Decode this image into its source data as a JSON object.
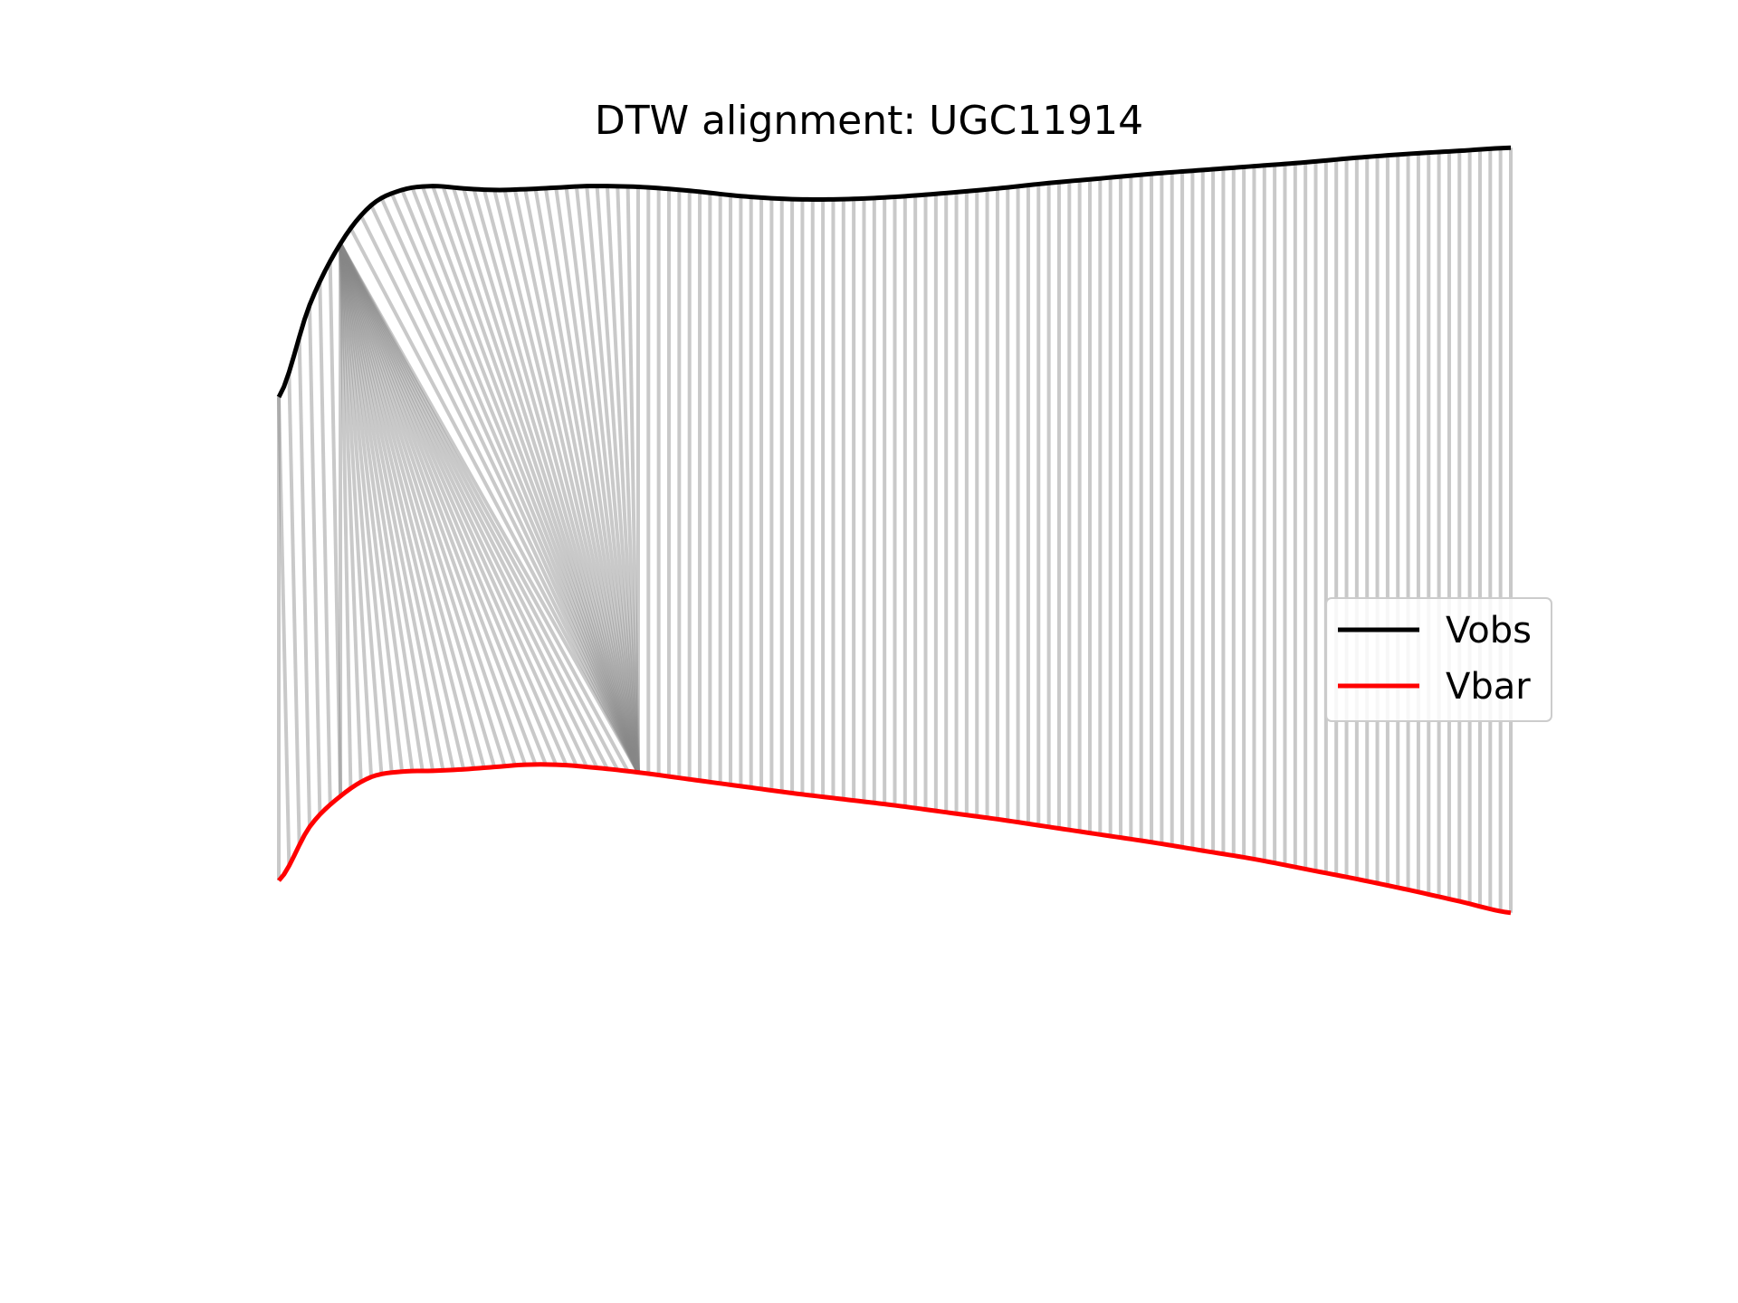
{
  "chart_data": {
    "type": "line",
    "title": "DTW alignment: UGC11914",
    "axes_visible": false,
    "grid": false,
    "legend_location": "center-right",
    "ylim": [
      -0.42,
      0.87
    ],
    "series": [
      {
        "name": "Vobs",
        "color": "#000000",
        "x": [
          0,
          3,
          6,
          9,
          12,
          15,
          18,
          21,
          24,
          27,
          30,
          35,
          40,
          45,
          50,
          55,
          60,
          65,
          70,
          75,
          80,
          85,
          90,
          95,
          100,
          105,
          110,
          115,
          120
        ],
        "values": [
          0.56,
          0.68,
          0.76,
          0.81,
          0.83,
          0.835,
          0.832,
          0.83,
          0.831,
          0.833,
          0.835,
          0.834,
          0.829,
          0.822,
          0.818,
          0.818,
          0.821,
          0.826,
          0.832,
          0.839,
          0.845,
          0.851,
          0.856,
          0.861,
          0.866,
          0.872,
          0.877,
          0.881,
          0.885
        ]
      },
      {
        "name": "Vbar",
        "color": "#ff0000",
        "x": [
          0,
          3,
          6,
          9,
          12,
          15,
          18,
          21,
          24,
          27,
          30,
          35,
          40,
          45,
          50,
          55,
          60,
          65,
          70,
          75,
          80,
          85,
          90,
          95,
          100,
          105,
          110,
          115,
          120
        ],
        "values": [
          -0.07,
          0.0,
          0.04,
          0.065,
          0.072,
          0.073,
          0.075,
          0.078,
          0.081,
          0.081,
          0.078,
          0.071,
          0.062,
          0.053,
          0.044,
          0.036,
          0.028,
          0.019,
          0.01,
          0.0,
          -0.01,
          -0.02,
          -0.031,
          -0.042,
          -0.055,
          -0.068,
          -0.082,
          -0.097,
          -0.112
        ]
      }
    ],
    "alignment": {
      "connector_color": "#888888",
      "pairs_vobs_to_vbar": [
        [
          0,
          0
        ],
        [
          0,
          1
        ],
        [
          1,
          2
        ],
        [
          2,
          3
        ],
        [
          3,
          4
        ],
        [
          4,
          5
        ],
        [
          5,
          6
        ],
        [
          6,
          6
        ],
        [
          6,
          7
        ],
        [
          6,
          8
        ],
        [
          6,
          9
        ],
        [
          6,
          10
        ],
        [
          6,
          11
        ],
        [
          6,
          12
        ],
        [
          6,
          13
        ],
        [
          6,
          14
        ],
        [
          6,
          15
        ],
        [
          6,
          16
        ],
        [
          6,
          17
        ],
        [
          6,
          18
        ],
        [
          6,
          19
        ],
        [
          6,
          20
        ],
        [
          6,
          21
        ],
        [
          6,
          22
        ],
        [
          6,
          23
        ],
        [
          6,
          24
        ],
        [
          6,
          25
        ],
        [
          6,
          26
        ],
        [
          6,
          27
        ],
        [
          6,
          28
        ],
        [
          6,
          29
        ],
        [
          6,
          30
        ],
        [
          6,
          31
        ],
        [
          6,
          32
        ],
        [
          6,
          33
        ],
        [
          6,
          34
        ],
        [
          6,
          35
        ],
        [
          7,
          35
        ],
        [
          8,
          35
        ],
        [
          9,
          35
        ],
        [
          10,
          35
        ],
        [
          11,
          35
        ],
        [
          12,
          35
        ],
        [
          13,
          35
        ],
        [
          14,
          35
        ],
        [
          15,
          35
        ],
        [
          16,
          35
        ],
        [
          17,
          35
        ],
        [
          18,
          35
        ],
        [
          19,
          35
        ],
        [
          20,
          35
        ],
        [
          21,
          35
        ],
        [
          22,
          35
        ],
        [
          23,
          35
        ],
        [
          24,
          35
        ],
        [
          25,
          35
        ],
        [
          26,
          35
        ],
        [
          27,
          35
        ],
        [
          28,
          35
        ],
        [
          29,
          35
        ],
        [
          30,
          35
        ],
        [
          31,
          35
        ],
        [
          32,
          35
        ],
        [
          33,
          35
        ],
        [
          34,
          35
        ],
        [
          35,
          35
        ],
        [
          36,
          36
        ],
        [
          37,
          37
        ],
        [
          38,
          38
        ],
        [
          39,
          39
        ],
        [
          40,
          40
        ],
        [
          41,
          41
        ],
        [
          42,
          42
        ],
        [
          43,
          43
        ],
        [
          44,
          44
        ],
        [
          45,
          45
        ],
        [
          46,
          46
        ],
        [
          47,
          47
        ],
        [
          48,
          48
        ],
        [
          49,
          49
        ],
        [
          50,
          50
        ],
        [
          51,
          51
        ],
        [
          52,
          52
        ],
        [
          53,
          53
        ],
        [
          54,
          54
        ],
        [
          55,
          55
        ],
        [
          56,
          56
        ],
        [
          57,
          57
        ],
        [
          58,
          58
        ],
        [
          59,
          59
        ],
        [
          60,
          60
        ],
        [
          61,
          61
        ],
        [
          62,
          62
        ],
        [
          63,
          63
        ],
        [
          64,
          64
        ],
        [
          65,
          65
        ],
        [
          66,
          66
        ],
        [
          67,
          67
        ],
        [
          68,
          68
        ],
        [
          69,
          69
        ],
        [
          70,
          70
        ],
        [
          71,
          71
        ],
        [
          72,
          72
        ],
        [
          73,
          73
        ],
        [
          74,
          74
        ],
        [
          75,
          75
        ],
        [
          76,
          76
        ],
        [
          77,
          77
        ],
        [
          78,
          78
        ],
        [
          79,
          79
        ],
        [
          80,
          80
        ],
        [
          81,
          81
        ],
        [
          82,
          82
        ],
        [
          83,
          83
        ],
        [
          84,
          84
        ],
        [
          85,
          85
        ],
        [
          86,
          86
        ],
        [
          87,
          87
        ],
        [
          88,
          88
        ],
        [
          89,
          89
        ],
        [
          90,
          90
        ],
        [
          91,
          91
        ],
        [
          92,
          92
        ],
        [
          93,
          93
        ],
        [
          94,
          94
        ],
        [
          95,
          95
        ],
        [
          96,
          96
        ],
        [
          97,
          97
        ],
        [
          98,
          98
        ],
        [
          99,
          99
        ],
        [
          100,
          100
        ],
        [
          101,
          101
        ],
        [
          102,
          102
        ],
        [
          103,
          103
        ],
        [
          104,
          104
        ],
        [
          105,
          105
        ],
        [
          106,
          106
        ],
        [
          107,
          107
        ],
        [
          108,
          108
        ],
        [
          109,
          109
        ],
        [
          110,
          110
        ],
        [
          111,
          111
        ],
        [
          112,
          112
        ],
        [
          113,
          113
        ],
        [
          114,
          114
        ],
        [
          115,
          115
        ],
        [
          116,
          116
        ],
        [
          117,
          117
        ],
        [
          118,
          118
        ],
        [
          119,
          119
        ],
        [
          120,
          120
        ]
      ]
    }
  }
}
